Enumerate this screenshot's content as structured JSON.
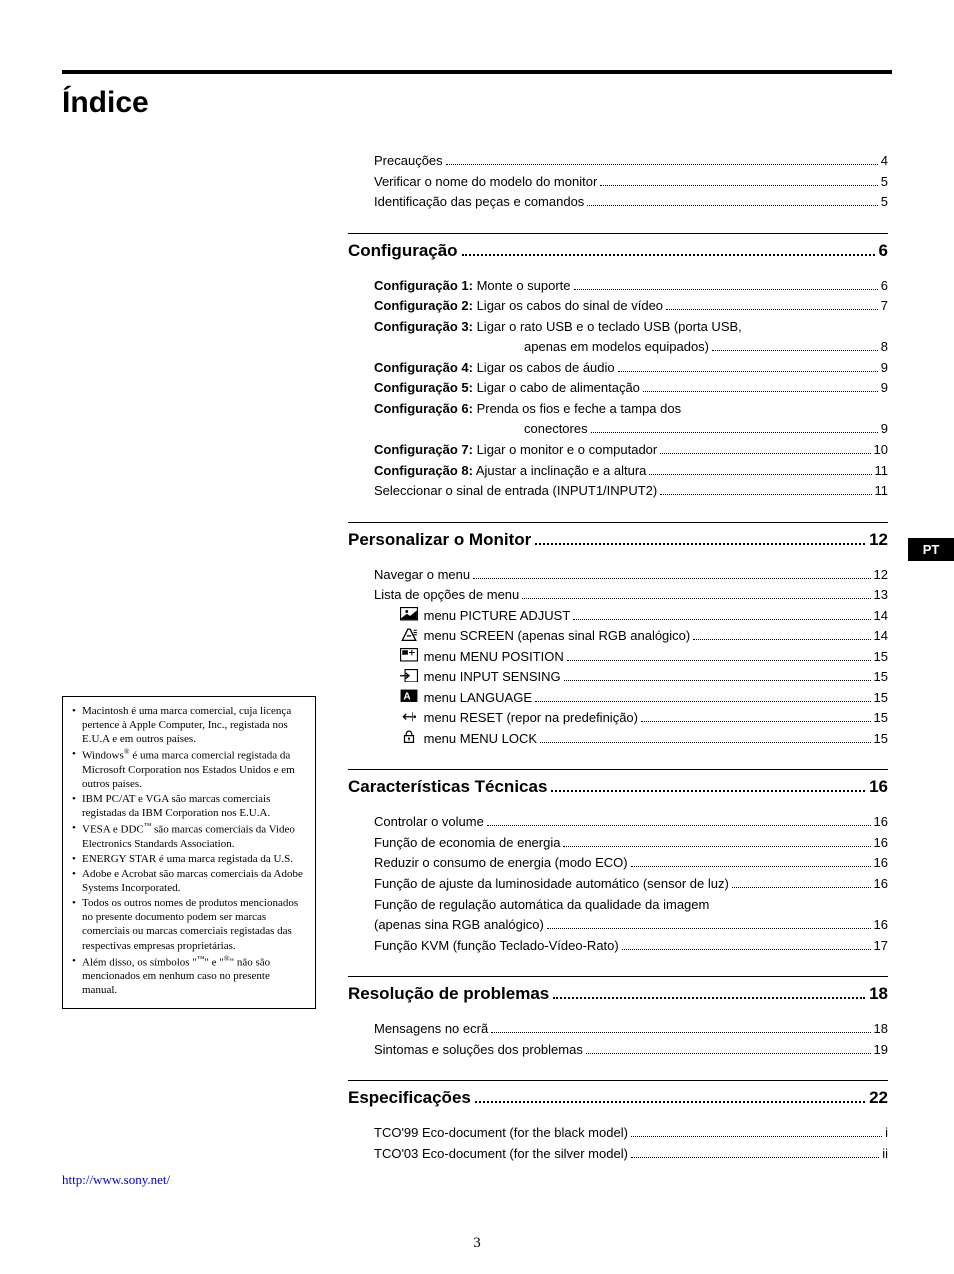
{
  "title": "Índice",
  "colors": {
    "text": "#000000",
    "bg": "#ffffff",
    "link": "#0000cc",
    "tab_bg": "#000000",
    "tab_fg": "#ffffff"
  },
  "pt_tab": "PT",
  "page_number": "3",
  "url": "http://www.sony.net/",
  "pre": [
    {
      "label": "Precauções",
      "page": "4"
    },
    {
      "label": "Verificar o nome do modelo do monitor",
      "page": "5"
    },
    {
      "label": "Identificação das peças e comandos",
      "page": "5"
    }
  ],
  "s1": {
    "title": "Configuração",
    "page": "6",
    "items": [
      {
        "bold": "Configuração 1:",
        "rest": " Monte o suporte",
        "page": "6"
      },
      {
        "bold": "Configuração 2:",
        "rest": " Ligar os cabos do sinal de vídeo",
        "page": "7"
      },
      {
        "bold": "Configuração 3:",
        "rest": " Ligar o rato USB e o teclado USB (porta USB,",
        "cont": "apenas em modelos equipados)",
        "page": "8"
      },
      {
        "bold": "Configuração 4:",
        "rest": " Ligar os cabos de áudio",
        "page": "9"
      },
      {
        "bold": "Configuração 5:",
        "rest": " Ligar o cabo de alimentação",
        "page": "9"
      },
      {
        "bold": "Configuração 6:",
        "rest": " Prenda os fios e feche a tampa dos",
        "cont": "conectores",
        "page": "9"
      },
      {
        "bold": "Configuração 7:",
        "rest": " Ligar o monitor e o computador",
        "page": "10"
      },
      {
        "bold": "Configuração 8:",
        "rest": " Ajustar a inclinação e a altura",
        "page": "11"
      },
      {
        "bold": "",
        "rest": "Seleccionar o sinal de entrada (INPUT1/INPUT2)",
        "page": "11"
      }
    ]
  },
  "s2": {
    "title": "Personalizar o Monitor",
    "page": "12",
    "items": [
      {
        "label": "Navegar o menu",
        "page": "12"
      },
      {
        "label": "Lista de opções de menu",
        "page": "13"
      },
      {
        "icon": "picture",
        "label": " menu PICTURE ADJUST",
        "page": "14",
        "indent": true
      },
      {
        "icon": "screen",
        "label": " menu SCREEN (apenas sinal RGB analógico)",
        "page": "14",
        "indent": true
      },
      {
        "icon": "menupos",
        "label": " menu MENU POSITION",
        "page": "15",
        "indent": true
      },
      {
        "icon": "input",
        "label": " menu INPUT SENSING",
        "page": "15",
        "indent": true
      },
      {
        "icon": "lang",
        "label": " menu LANGUAGE",
        "page": "15",
        "indent": true
      },
      {
        "icon": "reset",
        "label": " menu RESET (repor na predefinição)",
        "page": "15",
        "indent": true
      },
      {
        "icon": "lock",
        "label": " menu MENU LOCK",
        "page": "15",
        "indent": true
      }
    ]
  },
  "s3": {
    "title": "Características Técnicas",
    "page": "16",
    "items": [
      {
        "label": "Controlar o volume",
        "page": "16"
      },
      {
        "label": "Função de economia de energia",
        "page": "16"
      },
      {
        "label": "Reduzir o consumo de energia (modo ECO)",
        "page": "16"
      },
      {
        "label": "Função de ajuste da luminosidade automático (sensor de luz)",
        "page": "16"
      },
      {
        "label": "Função de regulação automática da qualidade da imagem",
        "cont": "(apenas sina RGB analógico)",
        "page": "16"
      },
      {
        "label": "Função KVM (função Teclado-Vídeo-Rato)",
        "page": "17"
      }
    ]
  },
  "s4": {
    "title": "Resolução de problemas",
    "page": "18",
    "items": [
      {
        "label": "Mensagens no ecrã",
        "page": "18"
      },
      {
        "label": "Sintomas e soluções dos problemas",
        "page": "19"
      }
    ]
  },
  "s5": {
    "title": "Especificações",
    "page": "22",
    "items": [
      {
        "label": "TCO'99 Eco-document (for the black model)",
        "page": "i"
      },
      {
        "label": "TCO'03 Eco-document (for the silver model)",
        "page": " ii"
      }
    ]
  },
  "legal": [
    "Macintosh é uma marca comercial, cuja licença pertence à Apple Computer, Inc., registada nos E.U.A e em outros países.",
    "Windows<sup>®</sup> é uma marca comercial registada da Microsoft Corporation nos Estados Unidos e em outros países.",
    "IBM PC/AT e VGA são marcas comerciais registadas da IBM Corporation nos E.U.A.",
    "VESA e DDC<sup>™</sup> são marcas comerciais da Video Electronics Standards Association.",
    "ENERGY STAR é uma marca registada da U.S.",
    "Adobe e Acrobat são marcas comerciais da Adobe Systems Incorporated.",
    "Todos os outros nomes de produtos mencionados no presente documento podem ser marcas comerciais ou marcas comerciais registadas das respectivas empresas proprietárias.",
    "Além disso, os símbolos \"<sup>™</sup>\" e \"<sup>®</sup>\" não são mencionados em nenhum caso no presente manual."
  ],
  "icons_svg": {
    "picture": "<svg viewBox='0 0 16 12'><rect x='0.5' y='0.5' width='15' height='11' fill='none' stroke='#000'/><circle cx='6' cy='4' r='1.3' fill='#000'/><path d='M1 10 L6 6 L9 8 L15 3 L15 11 L1 11 Z' fill='#000'/></svg>",
    "screen": "<svg viewBox='0 0 16 12'><path d='M2 11 L7 1 L9 1 L14 11 Z M6 7 L10 7' fill='none' stroke='#000' stroke-width='1.2'/><path d='M12 2 L15 2 M12 4 L15 4 M12 6 L15 6' stroke='#000' stroke-width='0.8'/></svg>",
    "menupos": "<svg viewBox='0 0 16 12'><rect x='0.5' y='0.5' width='15' height='11' fill='none' stroke='#000'/><rect x='2' y='2' width='5' height='4' fill='#000'/><path d='M8 4 L13 4 M10.5 1.5 L10.5 6.5' stroke='#000' stroke-width='0.9'/></svg>",
    "input": "<svg viewBox='0 0 16 12'><rect x='4.5' y='0.5' width='11' height='11' fill='none' stroke='#000'/><path d='M0 6 L7 6 M5 3.5 L8 6 L5 8.5' fill='none' stroke='#000' stroke-width='1.2'/></svg>",
    "lang": "<svg viewBox='0 0 16 12'><rect x='0.5' y='0.5' width='15' height='11' fill='#000'/><text x='3' y='9.5' font-family='Arial' font-size='9' font-weight='bold' fill='#fff'>A</text></svg>",
    "reset": "<svg viewBox='0 0 16 12'><path d='M11 6 L3 6 M5.5 3.5 L3 6 L5.5 8.5' fill='none' stroke='#000' stroke-width='1.2'/><circle cx='13' cy='6' r='1.2' fill='#000'/><path d='M11 2 L11 10' stroke='#000' stroke-width='0.6'/></svg>",
    "lock": "<svg viewBox='0 0 16 12'><rect x='4' y='5' width='8' height='6' fill='none' stroke='#000' stroke-width='1.1'/><path d='M5.5 5 L5.5 3.5 A2.5 2.5 0 0 1 10.5 3.5 L10.5 5' fill='none' stroke='#000' stroke-width='1.1'/><circle cx='8' cy='7.5' r='0.9' fill='#000'/><rect x='7.6' y='7.5' width='0.8' height='2' fill='#000'/></svg>"
  }
}
